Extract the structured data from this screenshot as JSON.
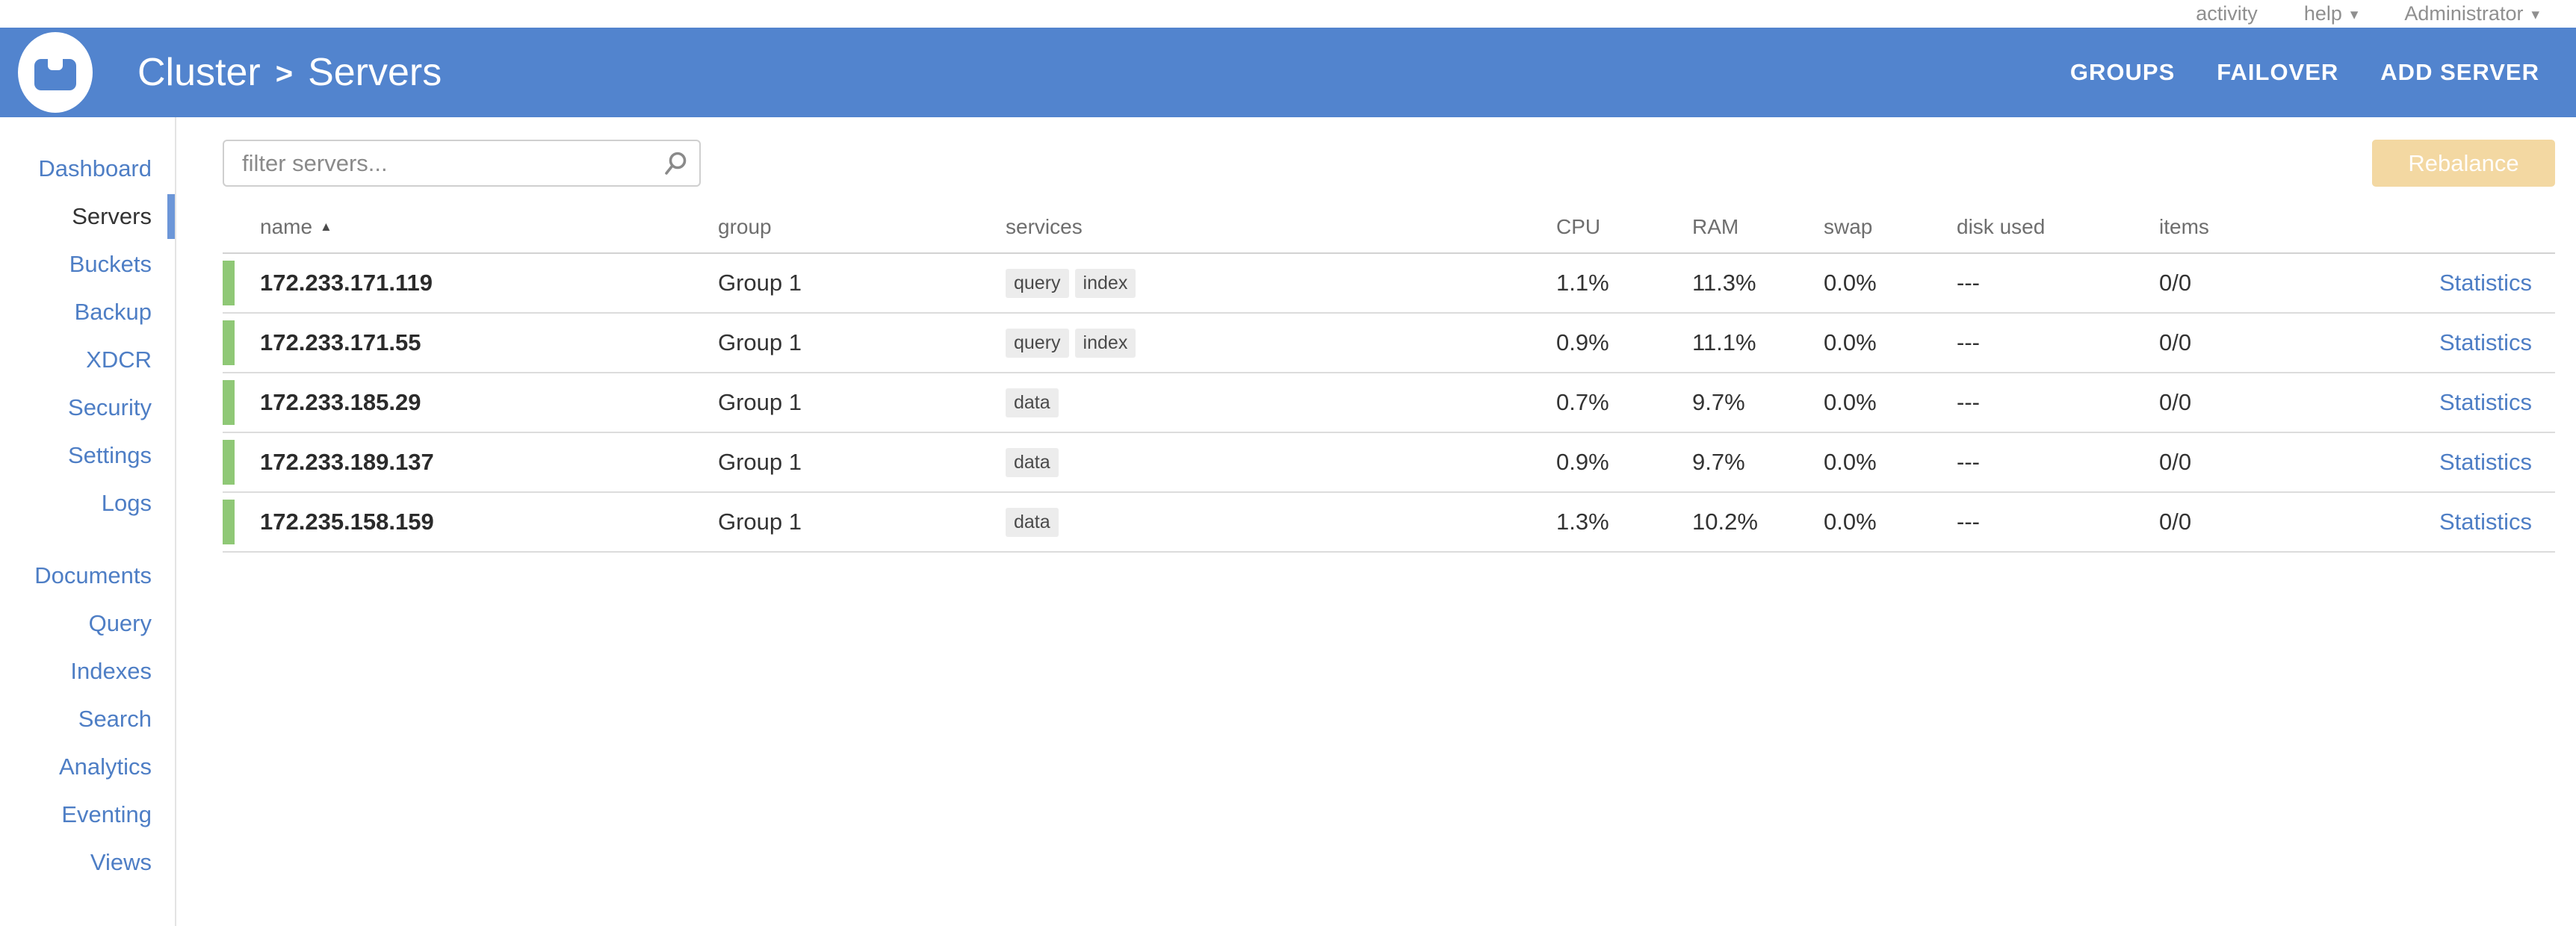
{
  "topbar": {
    "items": [
      {
        "label": "activity",
        "has_caret": false
      },
      {
        "label": "help",
        "has_caret": true
      },
      {
        "label": "Administrator",
        "has_caret": true
      }
    ]
  },
  "header": {
    "breadcrumb": {
      "root": "Cluster",
      "separator": ">",
      "current": "Servers"
    },
    "actions": [
      {
        "label": "GROUPS"
      },
      {
        "label": "FAILOVER"
      },
      {
        "label": "ADD SERVER"
      }
    ]
  },
  "sidebar": {
    "groups": [
      {
        "items": [
          {
            "label": "Dashboard",
            "active": false
          },
          {
            "label": "Servers",
            "active": true
          },
          {
            "label": "Buckets",
            "active": false
          },
          {
            "label": "Backup",
            "active": false
          },
          {
            "label": "XDCR",
            "active": false
          },
          {
            "label": "Security",
            "active": false
          },
          {
            "label": "Settings",
            "active": false
          },
          {
            "label": "Logs",
            "active": false
          }
        ]
      },
      {
        "items": [
          {
            "label": "Documents",
            "active": false
          },
          {
            "label": "Query",
            "active": false
          },
          {
            "label": "Indexes",
            "active": false
          },
          {
            "label": "Search",
            "active": false
          },
          {
            "label": "Analytics",
            "active": false
          },
          {
            "label": "Eventing",
            "active": false
          },
          {
            "label": "Views",
            "active": false
          }
        ]
      }
    ]
  },
  "toolbar": {
    "filter_placeholder": "filter servers...",
    "rebalance_label": "Rebalance",
    "rebalance_enabled": false
  },
  "table": {
    "columns": [
      {
        "label": "name",
        "sort": "asc"
      },
      {
        "label": "group",
        "sort": null
      },
      {
        "label": "services",
        "sort": null
      },
      {
        "label": "CPU",
        "sort": null
      },
      {
        "label": "RAM",
        "sort": null
      },
      {
        "label": "swap",
        "sort": null
      },
      {
        "label": "disk used",
        "sort": null
      },
      {
        "label": "items",
        "sort": null
      },
      {
        "label": "",
        "sort": null
      }
    ],
    "rows": [
      {
        "name": "172.233.171.119",
        "group": "Group 1",
        "services": [
          "query",
          "index"
        ],
        "cpu": "1.1%",
        "ram": "11.3%",
        "swap": "0.0%",
        "disk_used": "---",
        "items": "0/0",
        "statistics_label": "Statistics",
        "status_color": "#8fc876"
      },
      {
        "name": "172.233.171.55",
        "group": "Group 1",
        "services": [
          "query",
          "index"
        ],
        "cpu": "0.9%",
        "ram": "11.1%",
        "swap": "0.0%",
        "disk_used": "---",
        "items": "0/0",
        "statistics_label": "Statistics",
        "status_color": "#8fc876"
      },
      {
        "name": "172.233.185.29",
        "group": "Group 1",
        "services": [
          "data"
        ],
        "cpu": "0.7%",
        "ram": "9.7%",
        "swap": "0.0%",
        "disk_used": "---",
        "items": "0/0",
        "statistics_label": "Statistics",
        "status_color": "#8fc876"
      },
      {
        "name": "172.233.189.137",
        "group": "Group 1",
        "services": [
          "data"
        ],
        "cpu": "0.9%",
        "ram": "9.7%",
        "swap": "0.0%",
        "disk_used": "---",
        "items": "0/0",
        "statistics_label": "Statistics",
        "status_color": "#8fc876"
      },
      {
        "name": "172.235.158.159",
        "group": "Group 1",
        "services": [
          "data"
        ],
        "cpu": "1.3%",
        "ram": "10.2%",
        "swap": "0.0%",
        "disk_used": "---",
        "items": "0/0",
        "statistics_label": "Statistics",
        "status_color": "#8fc876"
      }
    ]
  },
  "icons": {
    "caret_down": "▾",
    "sort_asc": "▲"
  },
  "colors": {
    "header_blue": "#5284ce",
    "link_blue": "#4e7ec5",
    "active_indicator": "#6c96d8",
    "node_ok_green": "#8fc876",
    "rebalance_disabled_bg": "#f3d8a2",
    "badge_bg": "#ececec"
  }
}
